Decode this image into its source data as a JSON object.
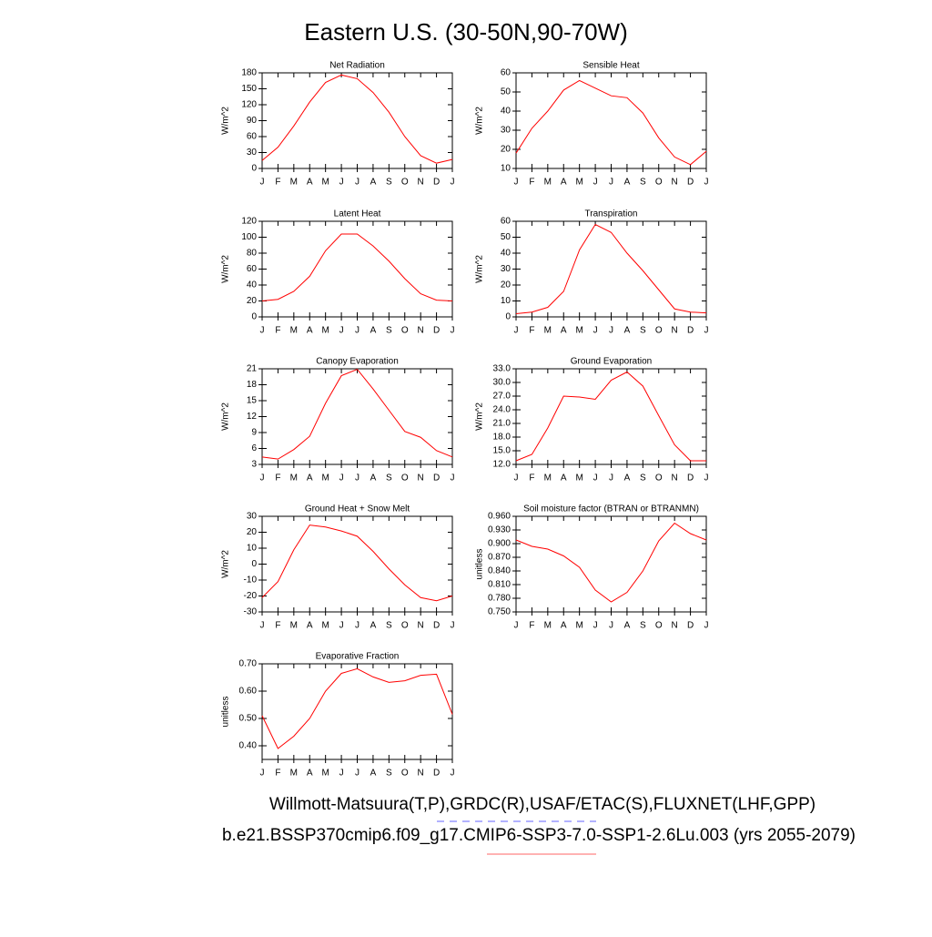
{
  "title": "Eastern U.S. (30-50N,90-70W)",
  "footer": [
    "Willmott-Matsuura(T,P),GRDC(R),USAF/ETAC(S),FLUXNET(LHF,GPP)",
    "b.e21.BSSP370cmip6.f09_g17.CMIP6-SSP3-7.0-SSP1-2.6Lu.003 (yrs 2055-2079)"
  ],
  "chart_data": [
    {
      "type": "line",
      "title": "Net Radiation",
      "y_label": "W/m^2",
      "color": "#ff0000",
      "categories": [
        "J",
        "F",
        "M",
        "A",
        "M",
        "J",
        "J",
        "A",
        "S",
        "O",
        "N",
        "D",
        "J"
      ],
      "values": [
        15,
        40,
        80,
        125,
        162,
        176,
        169,
        143,
        106,
        60,
        24,
        10,
        17
      ],
      "ylim": [
        0,
        180
      ],
      "yticks": [
        0,
        30,
        60,
        90,
        120,
        150,
        180
      ]
    },
    {
      "type": "line",
      "title": "Sensible Heat",
      "y_label": "W/m^2",
      "color": "#ff0000",
      "categories": [
        "J",
        "F",
        "M",
        "A",
        "M",
        "J",
        "J",
        "A",
        "S",
        "O",
        "N",
        "D",
        "J"
      ],
      "values": [
        18,
        31,
        40,
        51,
        56,
        52,
        48,
        47,
        39,
        26,
        16,
        12,
        19
      ],
      "ylim": [
        10,
        60
      ],
      "yticks": [
        10,
        20,
        30,
        40,
        50,
        60
      ]
    },
    {
      "type": "line",
      "title": "Latent Heat",
      "y_label": "W/m^2",
      "color": "#ff0000",
      "categories": [
        "J",
        "F",
        "M",
        "A",
        "M",
        "J",
        "J",
        "A",
        "S",
        "O",
        "N",
        "D",
        "J"
      ],
      "values": [
        20,
        22,
        32,
        51,
        83,
        104,
        104,
        89,
        70,
        48,
        29,
        21,
        20
      ],
      "ylim": [
        0,
        120
      ],
      "yticks": [
        0,
        20,
        40,
        60,
        80,
        100,
        120
      ]
    },
    {
      "type": "line",
      "title": "Transpiration",
      "y_label": "W/m^2",
      "color": "#ff0000",
      "categories": [
        "J",
        "F",
        "M",
        "A",
        "M",
        "J",
        "J",
        "A",
        "S",
        "O",
        "N",
        "D",
        "J"
      ],
      "values": [
        2,
        3,
        6,
        16,
        42,
        58,
        53,
        40,
        29,
        17,
        5,
        3,
        2.5
      ],
      "ylim": [
        0,
        60
      ],
      "yticks": [
        0,
        10,
        20,
        30,
        40,
        50,
        60
      ]
    },
    {
      "type": "line",
      "title": "Canopy Evaporation",
      "y_label": "W/m^2",
      "color": "#ff0000",
      "categories": [
        "J",
        "F",
        "M",
        "A",
        "M",
        "J",
        "J",
        "A",
        "S",
        "O",
        "N",
        "D",
        "J"
      ],
      "values": [
        4.4,
        4.0,
        5.8,
        8.3,
        14.5,
        19.7,
        20.9,
        17.2,
        13.2,
        9.2,
        8.1,
        5.6,
        4.4
      ],
      "ylim": [
        3,
        21
      ],
      "yticks": [
        3,
        6,
        9,
        12,
        15,
        18,
        21
      ]
    },
    {
      "type": "line",
      "title": "Ground Evaporation",
      "y_label": "W/m^2",
      "color": "#ff0000",
      "categories": [
        "J",
        "F",
        "M",
        "A",
        "M",
        "J",
        "J",
        "A",
        "S",
        "O",
        "N",
        "D",
        "J"
      ],
      "values": [
        12.8,
        14.2,
        20.0,
        27.0,
        26.8,
        26.3,
        30.5,
        32.3,
        29.2,
        22.7,
        16.3,
        12.8,
        12.8
      ],
      "ylim": [
        12,
        33
      ],
      "yticks": [
        {
          "value": 12,
          "label": "12.0"
        },
        {
          "value": 15,
          "label": "15.0"
        },
        {
          "value": 18,
          "label": "18.0"
        },
        {
          "value": 21,
          "label": "21.0"
        },
        {
          "value": 24,
          "label": "24.0"
        },
        {
          "value": 27,
          "label": "27.0"
        },
        {
          "value": 30,
          "label": "30.0"
        },
        {
          "value": 33,
          "label": "33.0"
        }
      ]
    },
    {
      "type": "line",
      "title": "Ground Heat + Snow Melt",
      "y_label": "W/m^2",
      "color": "#ff0000",
      "categories": [
        "J",
        "F",
        "M",
        "A",
        "M",
        "J",
        "J",
        "A",
        "S",
        "O",
        "N",
        "D",
        "J"
      ],
      "values": [
        -21,
        -11,
        9,
        24.5,
        23.3,
        20.8,
        17.5,
        8,
        -3,
        -13,
        -21,
        -23,
        -20
      ],
      "ylim": [
        -30,
        30
      ],
      "yticks": [
        -30,
        -20,
        -10,
        0,
        10,
        20,
        30
      ]
    },
    {
      "type": "line",
      "title": "Soil moisture factor (BTRAN or BTRANMN)",
      "y_label": "unitless",
      "color": "#ff0000",
      "categories": [
        "J",
        "F",
        "M",
        "A",
        "M",
        "J",
        "J",
        "A",
        "S",
        "O",
        "N",
        "D",
        "J"
      ],
      "values": [
        0.908,
        0.894,
        0.888,
        0.873,
        0.848,
        0.798,
        0.772,
        0.793,
        0.84,
        0.906,
        0.945,
        0.922,
        0.908
      ],
      "ylim": [
        0.75,
        0.96
      ],
      "yticks": [
        {
          "value": 0.75,
          "label": "0.750"
        },
        {
          "value": 0.78,
          "label": "0.780"
        },
        {
          "value": 0.81,
          "label": "0.810"
        },
        {
          "value": 0.84,
          "label": "0.840"
        },
        {
          "value": 0.87,
          "label": "0.870"
        },
        {
          "value": 0.9,
          "label": "0.900"
        },
        {
          "value": 0.93,
          "label": "0.930"
        },
        {
          "value": 0.96,
          "label": "0.960"
        }
      ]
    },
    {
      "type": "line",
      "title": "Evaporative Fraction",
      "y_label": "unitless",
      "color": "#ff0000",
      "categories": [
        "J",
        "F",
        "M",
        "A",
        "M",
        "J",
        "J",
        "A",
        "S",
        "O",
        "N",
        "D",
        "J"
      ],
      "values": [
        0.51,
        0.39,
        0.435,
        0.5,
        0.6,
        0.665,
        0.682,
        0.652,
        0.632,
        0.638,
        0.658,
        0.662,
        0.515
      ],
      "ylim": [
        0.35,
        0.7
      ],
      "yticks": [
        {
          "value": 0.4,
          "label": "0.40"
        },
        {
          "value": 0.5,
          "label": "0.50"
        },
        {
          "value": 0.6,
          "label": "0.60"
        },
        {
          "value": 0.7,
          "label": "0.70"
        }
      ]
    }
  ]
}
